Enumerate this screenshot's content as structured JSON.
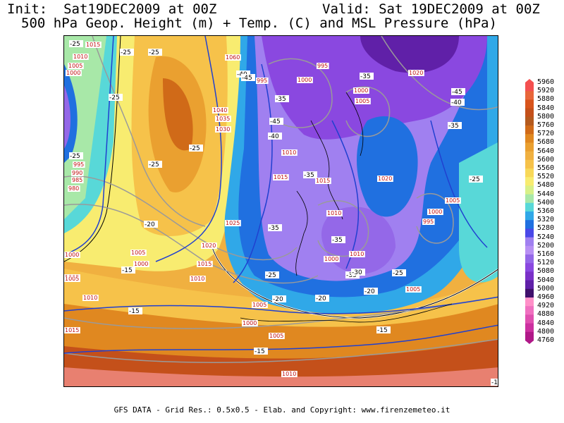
{
  "header": {
    "init": "Init:  Sat19DEC2009 at 00Z",
    "valid": "Valid: Sat 19DEC2009 at 00Z",
    "subtitle": "500 hPa Geop. Height (m) + Temp. (C) and MSL Pressure (hPa)"
  },
  "colorbar": {
    "levels": [
      "5960",
      "5920",
      "5880",
      "5840",
      "5800",
      "5760",
      "5720",
      "5680",
      "5640",
      "5600",
      "5560",
      "5520",
      "5480",
      "5440",
      "5400",
      "5360",
      "5320",
      "5280",
      "5240",
      "5200",
      "5160",
      "5120",
      "5080",
      "5040",
      "5000",
      "4960",
      "4920",
      "4880",
      "4840",
      "4800",
      "4760"
    ],
    "colors": [
      "#f45050",
      "#e8663a",
      "#d8541c",
      "#c4501a",
      "#b45a1e",
      "#d06a18",
      "#e08820",
      "#eaa030",
      "#f0b040",
      "#f6c24a",
      "#f8d858",
      "#f8ec70",
      "#d8f088",
      "#a8e8a8",
      "#58d8d8",
      "#30a8e8",
      "#2070e0",
      "#4a48e8",
      "#a080f0",
      "#b890f4",
      "#9468e8",
      "#8a48e0",
      "#7a30c8",
      "#6020a8",
      "#40106c",
      "#ff90c8",
      "#f070c0",
      "#e050b0",
      "#cc30a0",
      "#b01888"
    ]
  },
  "pressure_labels": [
    {
      "t": "1015",
      "c": "ctr1"
    },
    {
      "t": "1010",
      "c": "ctr2"
    },
    {
      "t": "1005",
      "c": "ctr3"
    },
    {
      "t": "1000",
      "c": "ctr4"
    },
    {
      "t": "1060",
      "c": "ctr5"
    },
    {
      "t": "995",
      "c": "ctr6"
    },
    {
      "t": "1000",
      "c": "ctr7"
    },
    {
      "t": "995",
      "c": "ctr8"
    },
    {
      "t": "1020",
      "c": "ctr9"
    },
    {
      "t": "1000",
      "c": "ctr10"
    },
    {
      "t": "1005",
      "c": "ctr11"
    },
    {
      "t": "1040",
      "c": "ctr12"
    },
    {
      "t": "1035",
      "c": "ctr13"
    },
    {
      "t": "1030",
      "c": "ctr14"
    },
    {
      "t": "1010",
      "c": "ctr15"
    },
    {
      "t": "1015",
      "c": "ctr16"
    },
    {
      "t": "1015",
      "c": "ctr17"
    },
    {
      "t": "1020",
      "c": "ctr18"
    },
    {
      "t": "995",
      "c": "ctr19"
    },
    {
      "t": "990",
      "c": "ctr20"
    },
    {
      "t": "985",
      "c": "ctr21"
    },
    {
      "t": "980",
      "c": "ctr22"
    },
    {
      "t": "1025",
      "c": "ctr23"
    },
    {
      "t": "1010",
      "c": "ctr24"
    },
    {
      "t": "1020",
      "c": "ctr25"
    },
    {
      "t": "1015",
      "c": "ctr26"
    },
    {
      "t": "1005",
      "c": "ctr27"
    },
    {
      "t": "1000",
      "c": "ctr28"
    },
    {
      "t": "1010",
      "c": "ctr29"
    },
    {
      "t": "1000",
      "c": "ctr30"
    },
    {
      "t": "1005",
      "c": "ctr31"
    },
    {
      "t": "1000",
      "c": "ctr32"
    },
    {
      "t": "995",
      "c": "ctr33"
    },
    {
      "t": "1005",
      "c": "ctr34"
    },
    {
      "t": "1005",
      "c": "ctr35"
    },
    {
      "t": "1005",
      "c": "ctr36"
    },
    {
      "t": "1000",
      "c": "ctr37"
    },
    {
      "t": "1005",
      "c": "ctr38"
    },
    {
      "t": "1010",
      "c": "ctr39"
    },
    {
      "t": "1005",
      "c": "ctr40"
    },
    {
      "t": "1010",
      "c": "ctr41"
    },
    {
      "t": "1015",
      "c": "ctr42"
    },
    {
      "t": "1010",
      "c": "ctr43"
    },
    {
      "t": "1000",
      "c": "ctr44"
    }
  ],
  "temperature_labels": [
    "-25",
    "-25",
    "-25",
    "-25",
    "-35",
    "-40",
    "-45",
    "-35",
    "-45",
    "-40",
    "-35",
    "-45",
    "-40",
    "-25",
    "-25",
    "-35",
    "-35",
    "-25",
    "-20",
    "-35",
    "-35",
    "-25",
    "-30",
    "-25",
    "-20",
    "-20",
    "-20",
    "-15",
    "-15",
    "-15",
    "-15",
    "-1",
    "-25"
  ],
  "credit": "GFS DATA - Grid Res.: 0.5x0.5 - Elab. and Copyright: www.firenzemeteo.it"
}
